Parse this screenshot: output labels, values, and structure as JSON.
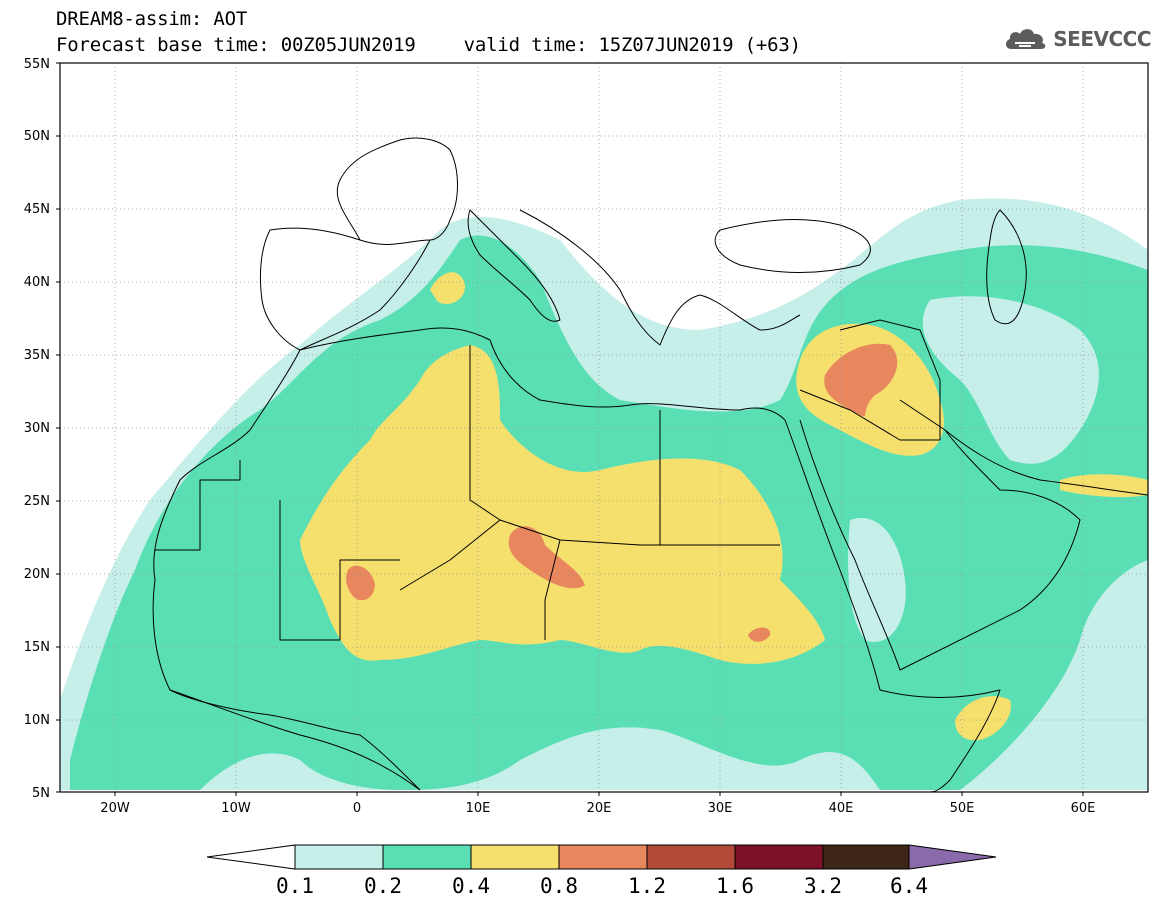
{
  "header": {
    "model_field": "DREAM8-assim: AOT",
    "base_time": "Forecast base time: 00Z05JUN2019",
    "valid_time": "valid time: 15Z07JUN2019 (+63)",
    "logo_text": "SEEVCCC",
    "logo_icon": "cloud-icon"
  },
  "map": {
    "lon_range": [
      -25,
      65
    ],
    "lat_range": [
      5,
      55
    ],
    "lat_ticks": [
      "5N",
      "10N",
      "15N",
      "20N",
      "25N",
      "30N",
      "35N",
      "40N",
      "45N",
      "50N",
      "55N"
    ],
    "lon_ticks": [
      "20W",
      "10W",
      "0",
      "10E",
      "20E",
      "30E",
      "40E",
      "50E",
      "60E"
    ],
    "gridlines": "dotted",
    "ocean_color": "#ffffff",
    "coastline_color": "#000000"
  },
  "colorbar": {
    "levels": [
      "0.1",
      "0.2",
      "0.4",
      "0.8",
      "1.2",
      "1.6",
      "3.2",
      "6.4"
    ],
    "colors": [
      "#c6efe9",
      "#5adfb4",
      "#f5e06e",
      "#e8865e",
      "#b24a3a",
      "#7a1128",
      "#3e2617",
      "#8a6aaa"
    ],
    "under_color": "#ffffff"
  }
}
